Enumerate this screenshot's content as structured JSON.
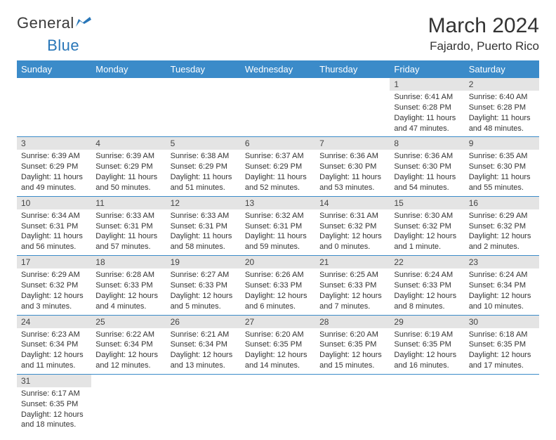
{
  "logo": {
    "word1": "General",
    "word2": "Blue"
  },
  "title": {
    "month": "March 2024",
    "location": "Fajardo, Puerto Rico"
  },
  "headers": [
    "Sunday",
    "Monday",
    "Tuesday",
    "Wednesday",
    "Thursday",
    "Friday",
    "Saturday"
  ],
  "colors": {
    "header_bg": "#3b8bc9",
    "header_text": "#ffffff",
    "daynum_bg": "#e4e4e4",
    "border": "#3b8bc9",
    "logo_gray": "#3a3a3a",
    "logo_blue": "#2876b8"
  },
  "weeks": [
    [
      null,
      null,
      null,
      null,
      null,
      {
        "n": "1",
        "sr": "Sunrise: 6:41 AM",
        "ss": "Sunset: 6:28 PM",
        "d1": "Daylight: 11 hours",
        "d2": "and 47 minutes."
      },
      {
        "n": "2",
        "sr": "Sunrise: 6:40 AM",
        "ss": "Sunset: 6:28 PM",
        "d1": "Daylight: 11 hours",
        "d2": "and 48 minutes."
      }
    ],
    [
      {
        "n": "3",
        "sr": "Sunrise: 6:39 AM",
        "ss": "Sunset: 6:29 PM",
        "d1": "Daylight: 11 hours",
        "d2": "and 49 minutes."
      },
      {
        "n": "4",
        "sr": "Sunrise: 6:39 AM",
        "ss": "Sunset: 6:29 PM",
        "d1": "Daylight: 11 hours",
        "d2": "and 50 minutes."
      },
      {
        "n": "5",
        "sr": "Sunrise: 6:38 AM",
        "ss": "Sunset: 6:29 PM",
        "d1": "Daylight: 11 hours",
        "d2": "and 51 minutes."
      },
      {
        "n": "6",
        "sr": "Sunrise: 6:37 AM",
        "ss": "Sunset: 6:29 PM",
        "d1": "Daylight: 11 hours",
        "d2": "and 52 minutes."
      },
      {
        "n": "7",
        "sr": "Sunrise: 6:36 AM",
        "ss": "Sunset: 6:30 PM",
        "d1": "Daylight: 11 hours",
        "d2": "and 53 minutes."
      },
      {
        "n": "8",
        "sr": "Sunrise: 6:36 AM",
        "ss": "Sunset: 6:30 PM",
        "d1": "Daylight: 11 hours",
        "d2": "and 54 minutes."
      },
      {
        "n": "9",
        "sr": "Sunrise: 6:35 AM",
        "ss": "Sunset: 6:30 PM",
        "d1": "Daylight: 11 hours",
        "d2": "and 55 minutes."
      }
    ],
    [
      {
        "n": "10",
        "sr": "Sunrise: 6:34 AM",
        "ss": "Sunset: 6:31 PM",
        "d1": "Daylight: 11 hours",
        "d2": "and 56 minutes."
      },
      {
        "n": "11",
        "sr": "Sunrise: 6:33 AM",
        "ss": "Sunset: 6:31 PM",
        "d1": "Daylight: 11 hours",
        "d2": "and 57 minutes."
      },
      {
        "n": "12",
        "sr": "Sunrise: 6:33 AM",
        "ss": "Sunset: 6:31 PM",
        "d1": "Daylight: 11 hours",
        "d2": "and 58 minutes."
      },
      {
        "n": "13",
        "sr": "Sunrise: 6:32 AM",
        "ss": "Sunset: 6:31 PM",
        "d1": "Daylight: 11 hours",
        "d2": "and 59 minutes."
      },
      {
        "n": "14",
        "sr": "Sunrise: 6:31 AM",
        "ss": "Sunset: 6:32 PM",
        "d1": "Daylight: 12 hours",
        "d2": "and 0 minutes."
      },
      {
        "n": "15",
        "sr": "Sunrise: 6:30 AM",
        "ss": "Sunset: 6:32 PM",
        "d1": "Daylight: 12 hours",
        "d2": "and 1 minute."
      },
      {
        "n": "16",
        "sr": "Sunrise: 6:29 AM",
        "ss": "Sunset: 6:32 PM",
        "d1": "Daylight: 12 hours",
        "d2": "and 2 minutes."
      }
    ],
    [
      {
        "n": "17",
        "sr": "Sunrise: 6:29 AM",
        "ss": "Sunset: 6:32 PM",
        "d1": "Daylight: 12 hours",
        "d2": "and 3 minutes."
      },
      {
        "n": "18",
        "sr": "Sunrise: 6:28 AM",
        "ss": "Sunset: 6:33 PM",
        "d1": "Daylight: 12 hours",
        "d2": "and 4 minutes."
      },
      {
        "n": "19",
        "sr": "Sunrise: 6:27 AM",
        "ss": "Sunset: 6:33 PM",
        "d1": "Daylight: 12 hours",
        "d2": "and 5 minutes."
      },
      {
        "n": "20",
        "sr": "Sunrise: 6:26 AM",
        "ss": "Sunset: 6:33 PM",
        "d1": "Daylight: 12 hours",
        "d2": "and 6 minutes."
      },
      {
        "n": "21",
        "sr": "Sunrise: 6:25 AM",
        "ss": "Sunset: 6:33 PM",
        "d1": "Daylight: 12 hours",
        "d2": "and 7 minutes."
      },
      {
        "n": "22",
        "sr": "Sunrise: 6:24 AM",
        "ss": "Sunset: 6:33 PM",
        "d1": "Daylight: 12 hours",
        "d2": "and 8 minutes."
      },
      {
        "n": "23",
        "sr": "Sunrise: 6:24 AM",
        "ss": "Sunset: 6:34 PM",
        "d1": "Daylight: 12 hours",
        "d2": "and 10 minutes."
      }
    ],
    [
      {
        "n": "24",
        "sr": "Sunrise: 6:23 AM",
        "ss": "Sunset: 6:34 PM",
        "d1": "Daylight: 12 hours",
        "d2": "and 11 minutes."
      },
      {
        "n": "25",
        "sr": "Sunrise: 6:22 AM",
        "ss": "Sunset: 6:34 PM",
        "d1": "Daylight: 12 hours",
        "d2": "and 12 minutes."
      },
      {
        "n": "26",
        "sr": "Sunrise: 6:21 AM",
        "ss": "Sunset: 6:34 PM",
        "d1": "Daylight: 12 hours",
        "d2": "and 13 minutes."
      },
      {
        "n": "27",
        "sr": "Sunrise: 6:20 AM",
        "ss": "Sunset: 6:35 PM",
        "d1": "Daylight: 12 hours",
        "d2": "and 14 minutes."
      },
      {
        "n": "28",
        "sr": "Sunrise: 6:20 AM",
        "ss": "Sunset: 6:35 PM",
        "d1": "Daylight: 12 hours",
        "d2": "and 15 minutes."
      },
      {
        "n": "29",
        "sr": "Sunrise: 6:19 AM",
        "ss": "Sunset: 6:35 PM",
        "d1": "Daylight: 12 hours",
        "d2": "and 16 minutes."
      },
      {
        "n": "30",
        "sr": "Sunrise: 6:18 AM",
        "ss": "Sunset: 6:35 PM",
        "d1": "Daylight: 12 hours",
        "d2": "and 17 minutes."
      }
    ],
    [
      {
        "n": "31",
        "sr": "Sunrise: 6:17 AM",
        "ss": "Sunset: 6:35 PM",
        "d1": "Daylight: 12 hours",
        "d2": "and 18 minutes."
      },
      null,
      null,
      null,
      null,
      null,
      null
    ]
  ]
}
